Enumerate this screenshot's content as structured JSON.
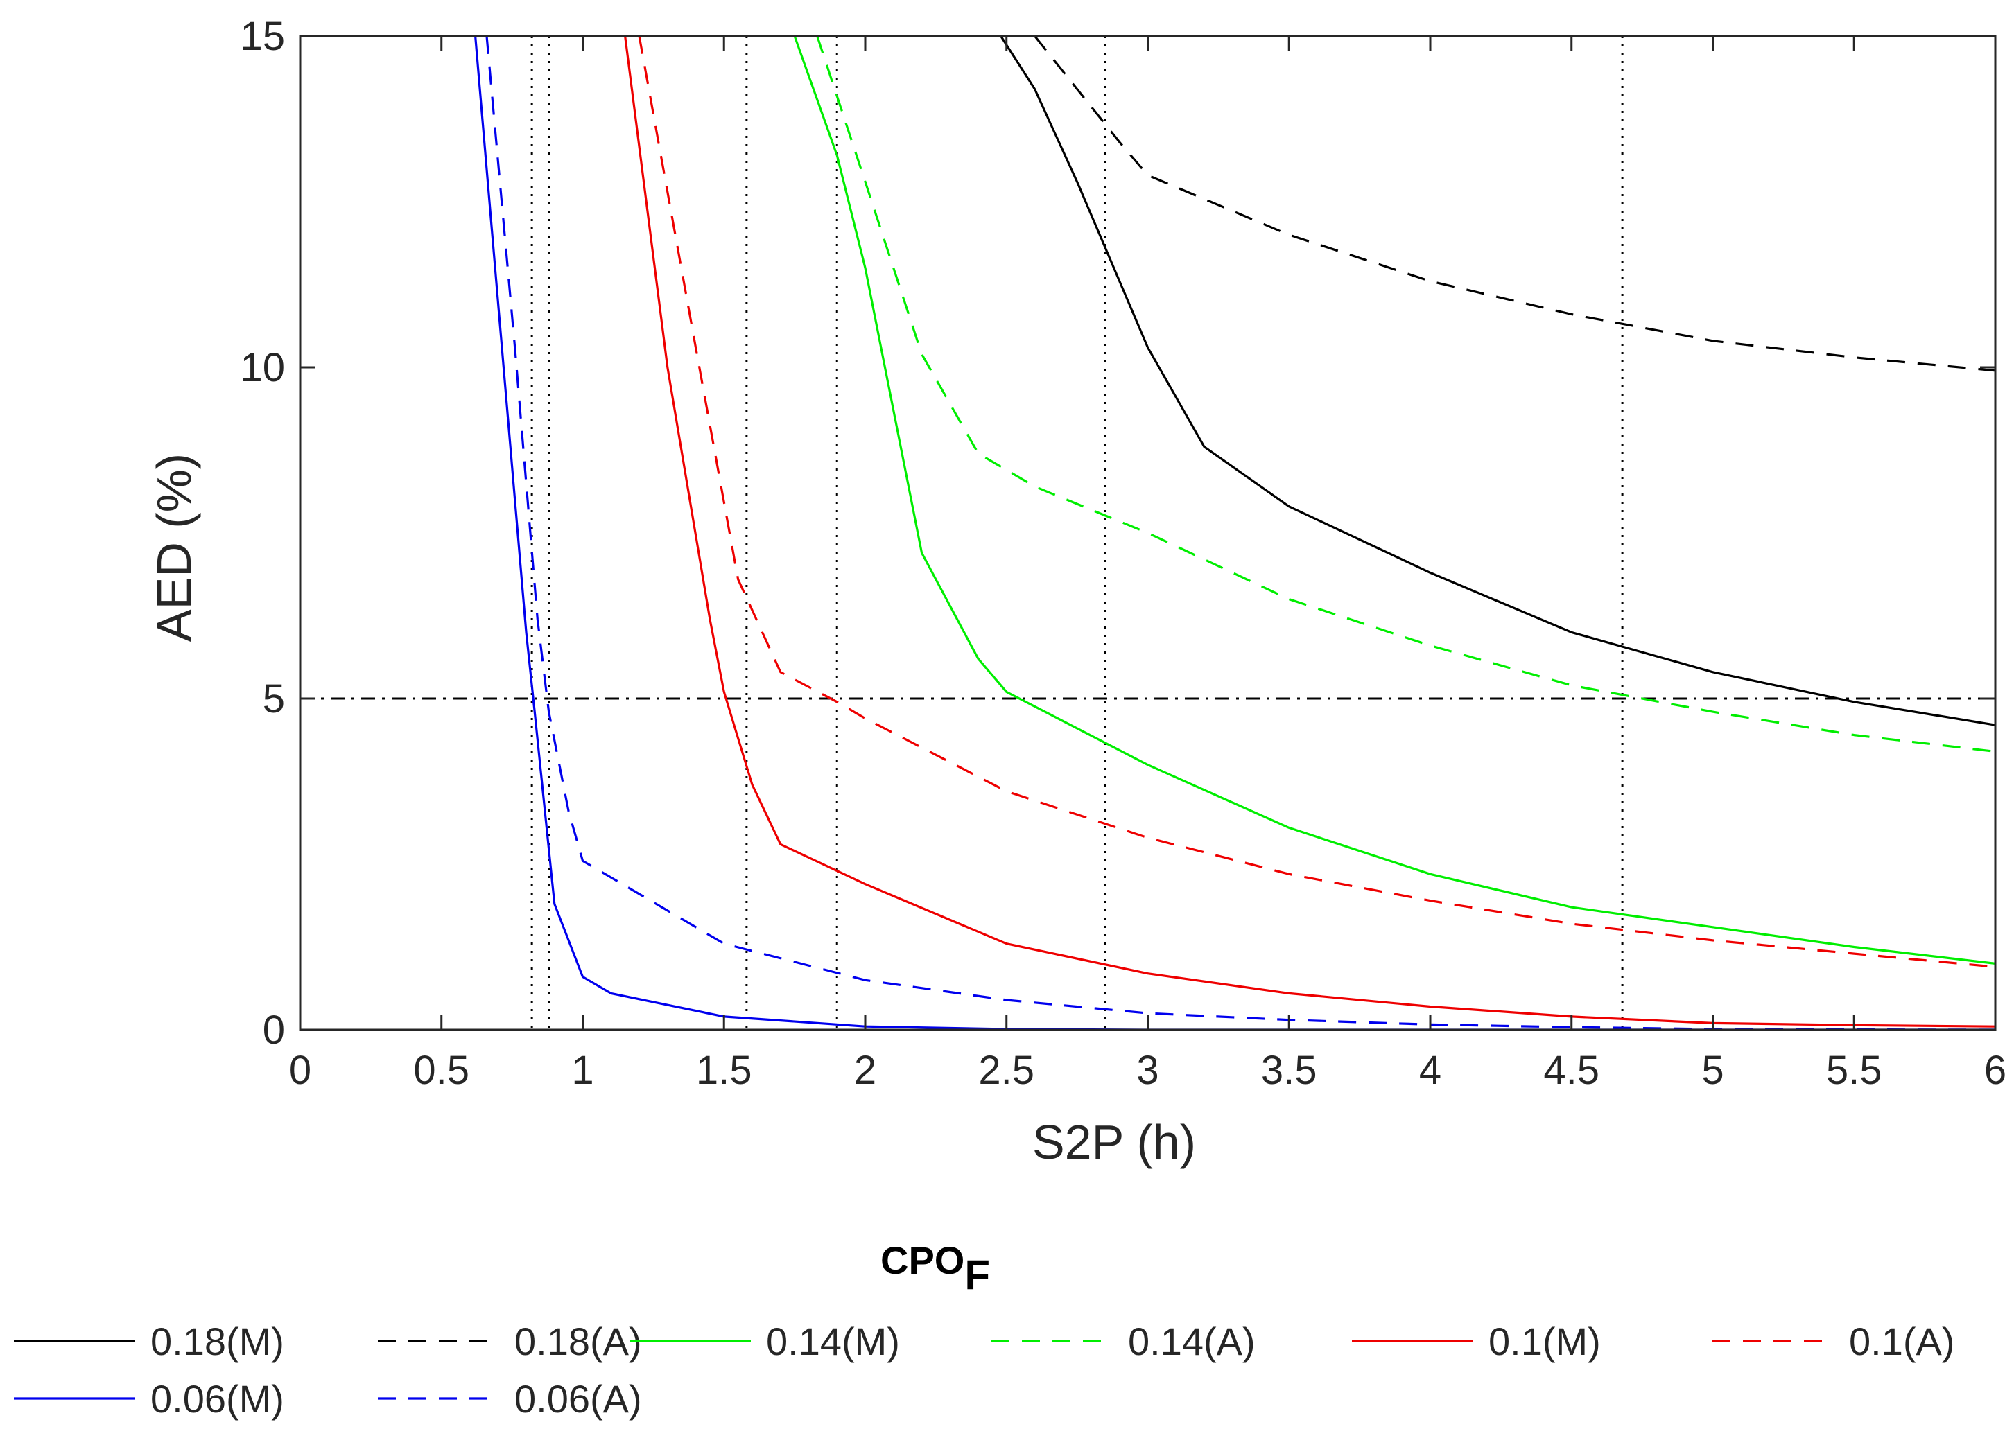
{
  "chart_data": {
    "type": "line",
    "xlabel": "S2P (h)",
    "ylabel": "AED (%)",
    "xlim": [
      0,
      6
    ],
    "ylim": [
      0,
      15
    ],
    "x_ticks": [
      0,
      0.5,
      1,
      1.5,
      2,
      2.5,
      3,
      3.5,
      4,
      4.5,
      5,
      5.5,
      6
    ],
    "x_tick_labels": [
      "0",
      "0.5",
      "1",
      "1.5",
      "2",
      "2.5",
      "3",
      "3.5",
      "4",
      "4.5",
      "5",
      "5.5",
      "6"
    ],
    "y_ticks": [
      0,
      5,
      10,
      15
    ],
    "y_tick_labels": [
      "0",
      "5",
      "10",
      "15"
    ],
    "reference_line": {
      "y": 5,
      "style": "dash-dot",
      "color": "#000000"
    },
    "vertical_markers": [
      0.82,
      0.88,
      1.58,
      1.9,
      2.85,
      4.68,
      6.0
    ],
    "legend": {
      "title": "CPO",
      "title_subscript": "F",
      "placement": "bottom"
    },
    "series": [
      {
        "name": "0.18(M)",
        "color": "#000000",
        "dash": "solid",
        "points": [
          [
            2.48,
            15
          ],
          [
            2.6,
            14.2
          ],
          [
            2.75,
            12.8
          ],
          [
            2.9,
            11.3
          ],
          [
            3.0,
            10.3
          ],
          [
            3.2,
            8.8
          ],
          [
            3.5,
            7.9
          ],
          [
            4.0,
            6.9
          ],
          [
            4.5,
            6.0
          ],
          [
            5.0,
            5.4
          ],
          [
            5.5,
            4.95
          ],
          [
            6.0,
            4.6
          ]
        ]
      },
      {
        "name": "0.18(A)",
        "color": "#000000",
        "dash": "dashed",
        "points": [
          [
            2.6,
            15
          ],
          [
            2.75,
            14.2
          ],
          [
            2.9,
            13.4
          ],
          [
            3.0,
            12.9
          ],
          [
            3.5,
            12.0
          ],
          [
            4.0,
            11.3
          ],
          [
            4.5,
            10.8
          ],
          [
            5.0,
            10.4
          ],
          [
            5.5,
            10.15
          ],
          [
            6.0,
            9.95
          ]
        ]
      },
      {
        "name": "0.14(M)",
        "color": "#00ee00",
        "dash": "solid",
        "points": [
          [
            1.75,
            15
          ],
          [
            1.9,
            13.2
          ],
          [
            2.0,
            11.5
          ],
          [
            2.2,
            7.2
          ],
          [
            2.4,
            5.6
          ],
          [
            2.5,
            5.1
          ],
          [
            3.0,
            4.0
          ],
          [
            3.5,
            3.05
          ],
          [
            4.0,
            2.35
          ],
          [
            4.5,
            1.85
          ],
          [
            5.0,
            1.55
          ],
          [
            5.5,
            1.25
          ],
          [
            6.0,
            1.0
          ]
        ]
      },
      {
        "name": "0.14(A)",
        "color": "#00ee00",
        "dash": "dashed",
        "points": [
          [
            1.83,
            15
          ],
          [
            2.0,
            12.8
          ],
          [
            2.2,
            10.2
          ],
          [
            2.4,
            8.7
          ],
          [
            2.6,
            8.2
          ],
          [
            3.0,
            7.5
          ],
          [
            3.5,
            6.5
          ],
          [
            4.0,
            5.8
          ],
          [
            4.5,
            5.2
          ],
          [
            5.0,
            4.8
          ],
          [
            5.5,
            4.45
          ],
          [
            6.0,
            4.2
          ]
        ]
      },
      {
        "name": "0.1(M)",
        "color": "#ee0000",
        "dash": "solid",
        "points": [
          [
            1.15,
            15
          ],
          [
            1.3,
            10.0
          ],
          [
            1.45,
            6.2
          ],
          [
            1.5,
            5.1
          ],
          [
            1.6,
            3.7
          ],
          [
            1.7,
            2.8
          ],
          [
            2.0,
            2.2
          ],
          [
            2.5,
            1.3
          ],
          [
            3.0,
            0.85
          ],
          [
            3.5,
            0.55
          ],
          [
            4.0,
            0.35
          ],
          [
            4.5,
            0.2
          ],
          [
            5.0,
            0.1
          ],
          [
            5.5,
            0.07
          ],
          [
            6.0,
            0.05
          ]
        ]
      },
      {
        "name": "0.1(A)",
        "color": "#ee0000",
        "dash": "dashed",
        "points": [
          [
            1.2,
            15
          ],
          [
            1.4,
            10.3
          ],
          [
            1.55,
            6.8
          ],
          [
            1.7,
            5.4
          ],
          [
            1.9,
            4.95
          ],
          [
            2.0,
            4.7
          ],
          [
            2.5,
            3.6
          ],
          [
            3.0,
            2.9
          ],
          [
            3.5,
            2.35
          ],
          [
            4.0,
            1.95
          ],
          [
            4.5,
            1.6
          ],
          [
            5.0,
            1.35
          ],
          [
            5.5,
            1.15
          ],
          [
            6.0,
            0.95
          ]
        ]
      },
      {
        "name": "0.06(M)",
        "color": "#0000ee",
        "dash": "solid",
        "points": [
          [
            0.62,
            15
          ],
          [
            0.72,
            10.0
          ],
          [
            0.8,
            6.0
          ],
          [
            0.83,
            4.8
          ],
          [
            0.9,
            1.9
          ],
          [
            1.0,
            0.8
          ],
          [
            1.1,
            0.55
          ],
          [
            1.5,
            0.2
          ],
          [
            2.0,
            0.05
          ],
          [
            2.5,
            0.01
          ],
          [
            3.0,
            0.0
          ],
          [
            6.0,
            0.0
          ]
        ]
      },
      {
        "name": "0.06(A)",
        "color": "#0000ee",
        "dash": "dashed",
        "points": [
          [
            0.66,
            15
          ],
          [
            0.76,
            10.3
          ],
          [
            0.84,
            6.2
          ],
          [
            0.88,
            4.8
          ],
          [
            0.95,
            3.3
          ],
          [
            1.0,
            2.55
          ],
          [
            1.5,
            1.3
          ],
          [
            2.0,
            0.75
          ],
          [
            2.5,
            0.45
          ],
          [
            3.0,
            0.25
          ],
          [
            3.5,
            0.15
          ],
          [
            4.0,
            0.08
          ],
          [
            4.5,
            0.04
          ],
          [
            5.0,
            0.01
          ],
          [
            6.0,
            0.0
          ]
        ]
      }
    ]
  }
}
